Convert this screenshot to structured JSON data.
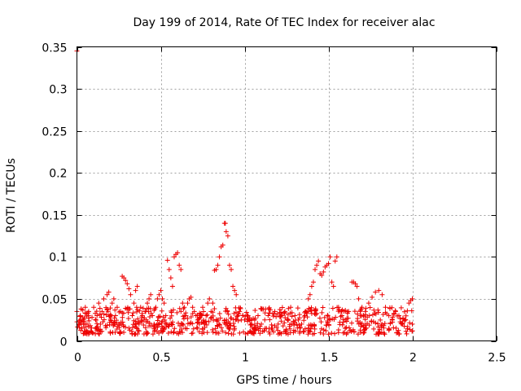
{
  "chart_data": {
    "type": "scatter",
    "title": "Day 199 of 2014, Rate Of TEC Index for receiver alac",
    "xlabel": "GPS time / hours",
    "ylabel": "ROTI / TECUs",
    "xlim": [
      0,
      2.5
    ],
    "ylim": [
      0,
      0.35
    ],
    "xticks": [
      0,
      0.5,
      1,
      1.5,
      2,
      2.5
    ],
    "xtick_labels": [
      "0",
      "0.5",
      "1",
      "1.5",
      "2",
      "2.5"
    ],
    "yticks": [
      0,
      0.05,
      0.1,
      0.15,
      0.2,
      0.25,
      0.3,
      0.35
    ],
    "ytick_labels": [
      "0",
      "0.05",
      "0.1",
      "0.15",
      "0.2",
      "0.25",
      "0.3",
      "0.35"
    ],
    "grid": true,
    "marker": "+",
    "marker_color": "#ee0000",
    "series": [
      {
        "name": "ROTI",
        "points": [
          [
            0.0,
            0.345
          ],
          [
            0.0,
            0.035
          ],
          [
            0.01,
            0.02
          ],
          [
            0.02,
            0.03
          ],
          [
            0.03,
            0.015
          ],
          [
            0.04,
            0.025
          ],
          [
            0.05,
            0.04
          ],
          [
            0.06,
            0.02
          ],
          [
            0.07,
            0.035
          ],
          [
            0.08,
            0.018
          ],
          [
            0.09,
            0.028
          ],
          [
            0.1,
            0.04
          ],
          [
            0.11,
            0.015
          ],
          [
            0.12,
            0.03
          ],
          [
            0.13,
            0.045
          ],
          [
            0.14,
            0.02
          ],
          [
            0.15,
            0.035
          ],
          [
            0.16,
            0.05
          ],
          [
            0.17,
            0.018
          ],
          [
            0.18,
            0.055
          ],
          [
            0.19,
            0.058
          ],
          [
            0.2,
            0.025
          ],
          [
            0.21,
            0.045
          ],
          [
            0.22,
            0.05
          ],
          [
            0.23,
            0.03
          ],
          [
            0.24,
            0.04
          ],
          [
            0.25,
            0.02
          ],
          [
            0.26,
            0.035
          ],
          [
            0.27,
            0.077
          ],
          [
            0.28,
            0.075
          ],
          [
            0.29,
            0.072
          ],
          [
            0.3,
            0.068
          ],
          [
            0.31,
            0.062
          ],
          [
            0.32,
            0.055
          ],
          [
            0.33,
            0.03
          ],
          [
            0.34,
            0.045
          ],
          [
            0.35,
            0.06
          ],
          [
            0.36,
            0.065
          ],
          [
            0.37,
            0.02
          ],
          [
            0.38,
            0.04
          ],
          [
            0.39,
            0.03
          ],
          [
            0.4,
            0.025
          ],
          [
            0.41,
            0.035
          ],
          [
            0.42,
            0.045
          ],
          [
            0.43,
            0.05
          ],
          [
            0.44,
            0.055
          ],
          [
            0.45,
            0.03
          ],
          [
            0.46,
            0.02
          ],
          [
            0.47,
            0.04
          ],
          [
            0.48,
            0.05
          ],
          [
            0.49,
            0.055
          ],
          [
            0.5,
            0.06
          ],
          [
            0.51,
            0.05
          ],
          [
            0.52,
            0.045
          ],
          [
            0.53,
            0.03
          ],
          [
            0.54,
            0.096
          ],
          [
            0.55,
            0.085
          ],
          [
            0.56,
            0.075
          ],
          [
            0.57,
            0.065
          ],
          [
            0.58,
            0.1
          ],
          [
            0.59,
            0.103
          ],
          [
            0.6,
            0.105
          ],
          [
            0.61,
            0.09
          ],
          [
            0.62,
            0.085
          ],
          [
            0.63,
            0.045
          ],
          [
            0.64,
            0.04
          ],
          [
            0.65,
            0.03
          ],
          [
            0.66,
            0.045
          ],
          [
            0.67,
            0.05
          ],
          [
            0.68,
            0.052
          ],
          [
            0.69,
            0.04
          ],
          [
            0.7,
            0.035
          ],
          [
            0.71,
            0.03
          ],
          [
            0.72,
            0.025
          ],
          [
            0.73,
            0.02
          ],
          [
            0.74,
            0.03
          ],
          [
            0.75,
            0.04
          ],
          [
            0.76,
            0.02
          ],
          [
            0.77,
            0.03
          ],
          [
            0.78,
            0.045
          ],
          [
            0.79,
            0.05
          ],
          [
            0.8,
            0.035
          ],
          [
            0.81,
            0.045
          ],
          [
            0.82,
            0.084
          ],
          [
            0.83,
            0.085
          ],
          [
            0.84,
            0.09
          ],
          [
            0.85,
            0.1
          ],
          [
            0.86,
            0.112
          ],
          [
            0.87,
            0.114
          ],
          [
            0.88,
            0.14
          ],
          [
            0.885,
            0.14
          ],
          [
            0.89,
            0.13
          ],
          [
            0.9,
            0.125
          ],
          [
            0.91,
            0.09
          ],
          [
            0.92,
            0.085
          ],
          [
            0.93,
            0.065
          ],
          [
            0.94,
            0.06
          ],
          [
            0.95,
            0.055
          ],
          [
            0.96,
            0.03
          ],
          [
            0.97,
            0.035
          ],
          [
            0.98,
            0.025
          ],
          [
            0.99,
            0.03
          ],
          [
            1.0,
            0.025
          ],
          [
            1.02,
            0.03
          ],
          [
            1.04,
            0.02
          ],
          [
            1.06,
            0.025
          ],
          [
            1.08,
            0.03
          ],
          [
            1.1,
            0.02
          ],
          [
            1.12,
            0.025
          ],
          [
            1.14,
            0.03
          ],
          [
            1.16,
            0.015
          ],
          [
            1.18,
            0.035
          ],
          [
            1.2,
            0.02
          ],
          [
            1.22,
            0.03
          ],
          [
            1.24,
            0.035
          ],
          [
            1.26,
            0.025
          ],
          [
            1.28,
            0.02
          ],
          [
            1.3,
            0.03
          ],
          [
            1.32,
            0.025
          ],
          [
            1.34,
            0.02
          ],
          [
            1.36,
            0.03
          ],
          [
            1.38,
            0.05
          ],
          [
            1.39,
            0.055
          ],
          [
            1.4,
            0.065
          ],
          [
            1.41,
            0.07
          ],
          [
            1.42,
            0.085
          ],
          [
            1.43,
            0.09
          ],
          [
            1.44,
            0.095
          ],
          [
            1.45,
            0.08
          ],
          [
            1.46,
            0.078
          ],
          [
            1.47,
            0.082
          ],
          [
            1.48,
            0.088
          ],
          [
            1.49,
            0.09
          ],
          [
            1.5,
            0.092
          ],
          [
            1.51,
            0.1
          ],
          [
            1.52,
            0.07
          ],
          [
            1.53,
            0.065
          ],
          [
            1.54,
            0.095
          ],
          [
            1.55,
            0.1
          ],
          [
            1.56,
            0.04
          ],
          [
            1.57,
            0.035
          ],
          [
            1.58,
            0.03
          ],
          [
            1.6,
            0.025
          ],
          [
            1.62,
            0.035
          ],
          [
            1.64,
            0.07
          ],
          [
            1.65,
            0.07
          ],
          [
            1.66,
            0.068
          ],
          [
            1.67,
            0.065
          ],
          [
            1.68,
            0.05
          ],
          [
            1.7,
            0.04
          ],
          [
            1.72,
            0.035
          ],
          [
            1.74,
            0.045
          ],
          [
            1.76,
            0.052
          ],
          [
            1.78,
            0.058
          ],
          [
            1.8,
            0.06
          ],
          [
            1.82,
            0.055
          ],
          [
            1.84,
            0.04
          ],
          [
            1.86,
            0.03
          ],
          [
            1.88,
            0.025
          ],
          [
            1.9,
            0.035
          ],
          [
            1.92,
            0.03
          ],
          [
            1.94,
            0.02
          ],
          [
            1.96,
            0.025
          ],
          [
            1.98,
            0.045
          ],
          [
            1.99,
            0.048
          ],
          [
            2.0,
            0.05
          ],
          [
            2.0,
            0.02
          ],
          [
            2.0,
            0.012
          ]
        ]
      }
    ],
    "dense_band": {
      "description": "dense cluster of points between x 0 and 2",
      "x_range": [
        0,
        2.0
      ],
      "y_range": [
        0.008,
        0.04
      ]
    }
  }
}
